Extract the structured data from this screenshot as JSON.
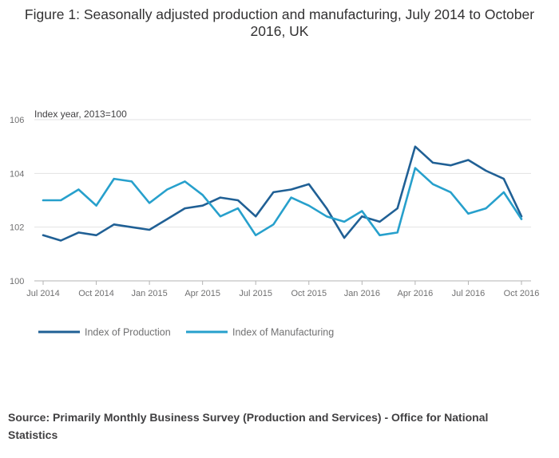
{
  "chart_data": {
    "type": "line",
    "title": "Figure 1: Seasonally adjusted production and manufacturing, July 2014 to October 2016, UK",
    "ylabel": "Index year, 2013=100",
    "xlabel": "",
    "ylim": [
      100,
      106
    ],
    "yticks": [
      "106",
      "104",
      "102",
      "100"
    ],
    "ytick_values": [
      106,
      104,
      102,
      100
    ],
    "x": [
      "Jul 2014",
      "Aug 2014",
      "Sep 2014",
      "Oct 2014",
      "Nov 2014",
      "Dec 2014",
      "Jan 2015",
      "Feb 2015",
      "Mar 2015",
      "Apr 2015",
      "May 2015",
      "Jun 2015",
      "Jul 2015",
      "Aug 2015",
      "Sep 2015",
      "Oct 2015",
      "Nov 2015",
      "Dec 2015",
      "Jan 2016",
      "Feb 2016",
      "Mar 2016",
      "Apr 2016",
      "May 2016",
      "Jun 2016",
      "Jul 2016",
      "Aug 2016",
      "Sep 2016",
      "Oct 2016"
    ],
    "xticks": [
      "Jul 2014",
      "Oct 2014",
      "Jan 2015",
      "Apr 2015",
      "Jul 2015",
      "Oct 2015",
      "Jan 2016",
      "Apr 2016",
      "Jul 2016",
      "Oct 2016"
    ],
    "xtick_index": [
      0,
      3,
      6,
      9,
      12,
      15,
      18,
      21,
      24,
      27
    ],
    "series": [
      {
        "name": "Index of Production",
        "color": "#206095",
        "values": [
          101.7,
          101.5,
          101.8,
          101.7,
          102.1,
          102.0,
          101.9,
          102.3,
          102.7,
          102.8,
          103.1,
          103.0,
          102.4,
          103.3,
          103.4,
          103.6,
          102.7,
          101.6,
          102.4,
          102.2,
          102.7,
          105.0,
          104.4,
          104.3,
          104.5,
          104.1,
          103.8,
          102.4
        ]
      },
      {
        "name": "Index of Manufacturing",
        "color": "#27a0cc",
        "values": [
          103.0,
          103.0,
          103.4,
          102.8,
          103.8,
          103.7,
          102.9,
          103.4,
          103.7,
          103.2,
          102.4,
          102.7,
          101.7,
          102.1,
          103.1,
          102.8,
          102.4,
          102.2,
          102.6,
          101.7,
          101.8,
          104.2,
          103.6,
          103.3,
          102.5,
          102.7,
          103.3,
          102.3
        ]
      }
    ],
    "grid": true,
    "legend": "bottom-left"
  },
  "source": "Source: Primarily Monthly Business Survey (Production and Services) - Office for National Statistics"
}
